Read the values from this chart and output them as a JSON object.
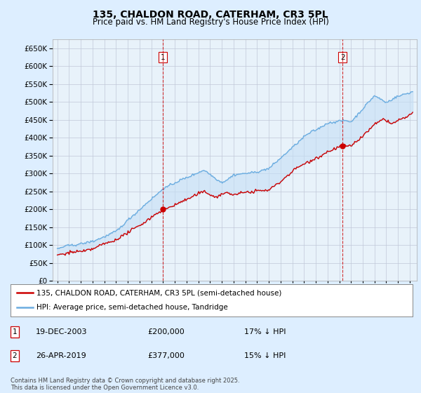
{
  "title1": "135, CHALDON ROAD, CATERHAM, CR3 5PL",
  "title2": "Price paid vs. HM Land Registry's House Price Index (HPI)",
  "legend1": "135, CHALDON ROAD, CATERHAM, CR3 5PL (semi-detached house)",
  "legend2": "HPI: Average price, semi-detached house, Tandridge",
  "marker1_date": "19-DEC-2003",
  "marker1_price": 200000,
  "marker1_label": "17% ↓ HPI",
  "marker2_date": "26-APR-2019",
  "marker2_price": 377000,
  "marker2_label": "15% ↓ HPI",
  "footnote": "Contains HM Land Registry data © Crown copyright and database right 2025.\nThis data is licensed under the Open Government Licence v3.0.",
  "hpi_color": "#6aace0",
  "price_color": "#cc0000",
  "background_color": "#ddeeff",
  "plot_bg": "#e8f2fa",
  "fill_color": "#c5dff5",
  "ylim": [
    0,
    675000
  ],
  "yticks": [
    0,
    50000,
    100000,
    150000,
    200000,
    250000,
    300000,
    350000,
    400000,
    450000,
    500000,
    550000,
    600000,
    650000
  ],
  "grid_color": "#c0c8d8"
}
